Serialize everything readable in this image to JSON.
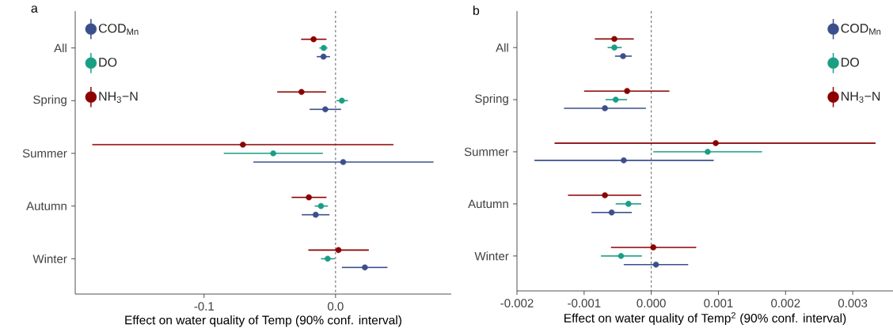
{
  "chart_data": [
    {
      "type": "scatter",
      "orientation": "horizontal",
      "title": "a",
      "xlabel": "Effect on water quality of Temp (90% conf. interval)",
      "categories": [
        "All",
        "Spring",
        "Summer",
        "Autumn",
        "Winter"
      ],
      "series": [
        {
          "name": "COD$_{Mn}$",
          "color": "#3b4f8c",
          "values": [
            -0.0092,
            -0.0078,
            0.0058,
            -0.0151,
            0.0223
          ],
          "errors": [
            [
              -0.0143,
              -0.0042
            ],
            [
              -0.0197,
              0.0042
            ],
            [
              -0.0625,
              0.0745
            ],
            [
              -0.0257,
              -0.0046
            ],
            [
              0.0048,
              0.0395
            ]
          ]
        },
        {
          "name": "DO",
          "color": "#1a9e84",
          "values": [
            -0.009,
            0.0048,
            -0.0474,
            -0.0111,
            -0.006
          ],
          "errors": [
            [
              -0.0123,
              -0.0062
            ],
            [
              0.0008,
              0.0094
            ],
            [
              -0.085,
              -0.0096
            ],
            [
              -0.0159,
              -0.0058
            ],
            [
              -0.0111,
              -0.0006
            ]
          ]
        },
        {
          "name": "NH$_{3}$−N",
          "color": "#8b0000",
          "values": [
            -0.0167,
            -0.0259,
            -0.0705,
            -0.0203,
            0.0022
          ],
          "errors": [
            [
              -0.0262,
              -0.0069
            ],
            [
              -0.0444,
              -0.0072
            ],
            [
              -0.185,
              0.044
            ],
            [
              -0.0334,
              -0.0069
            ],
            [
              -0.0207,
              0.0253
            ]
          ]
        }
      ],
      "xlim": [
        -0.198,
        0.088
      ],
      "xticks": [
        -0.1,
        {
          "value": 0,
          "label": "0.0"
        }
      ],
      "ref_lines": [
        {
          "axis": "x",
          "value": 0,
          "line_style": "dashed"
        }
      ],
      "legend": "top left",
      "marker": "circle",
      "grid": false
    },
    {
      "type": "scatter",
      "orientation": "horizontal",
      "title": "b",
      "xlabel": "Effect on water quality of Temp$^{2}$ (90% conf. interval)",
      "categories": [
        "All",
        "Spring",
        "Summer",
        "Autumn",
        "Winter"
      ],
      "series": [
        {
          "name": "COD$_{Mn}$",
          "color": "#3b4f8c",
          "values": [
            -0.00042,
            -0.00069,
            -0.00041,
            -0.00059,
            7e-05
          ],
          "errors": [
            [
              -0.00054,
              -0.00029
            ],
            [
              -0.0013,
              -8e-05
            ],
            [
              -0.00174,
              0.00093
            ],
            [
              -0.00089,
              -0.00029
            ],
            [
              -0.00041,
              0.00055
            ]
          ]
        },
        {
          "name": "DO",
          "color": "#1a9e84",
          "values": [
            -0.00055,
            -0.00053,
            0.00084,
            -0.00034,
            -0.00045
          ],
          "errors": [
            [
              -0.00065,
              -0.00044
            ],
            [
              -0.00068,
              -0.00036
            ],
            [
              3e-05,
              0.00165
            ],
            [
              -0.00053,
              -0.00015
            ],
            [
              -0.00075,
              -0.00014
            ]
          ]
        },
        {
          "name": "NH$_{3}$−N",
          "color": "#8b0000",
          "values": [
            -0.00055,
            -0.00036,
            0.00096,
            -0.00069,
            3e-05
          ],
          "errors": [
            [
              -0.00084,
              -0.00026
            ],
            [
              -0.001,
              0.00027
            ],
            [
              -0.00144,
              0.00334
            ],
            [
              -0.00124,
              -0.00015
            ],
            [
              -0.0006,
              0.00067
            ]
          ]
        }
      ],
      "xlim": [
        -0.002,
        0.0036
      ],
      "xticks": [
        -0.002,
        -0.001,
        {
          "value": 0,
          "label": "0.000"
        },
        0.001,
        0.002,
        0.003
      ],
      "ref_lines": [
        {
          "axis": "x",
          "value": 0,
          "line_style": "dashed"
        }
      ],
      "legend": "top right",
      "marker": "circle",
      "grid": false
    }
  ]
}
